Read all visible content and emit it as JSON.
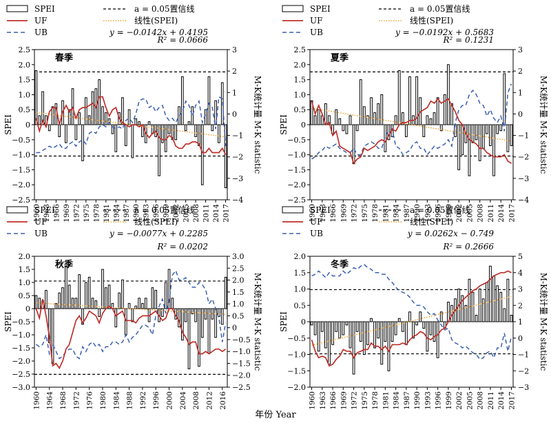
{
  "figure": {
    "x_axis_label": "年份 Year",
    "colors": {
      "bars": "#000000",
      "bar_fill": "#ffffff",
      "uf": "#c0302b",
      "ub": "#3b5fb0",
      "trend": "#f0a030",
      "conf": "#000000"
    }
  },
  "legend": {
    "spei": "SPEI",
    "conf": "a = 0.05置信线",
    "uf": "UF",
    "trend": "线性(SPEI)",
    "ub": "UB"
  },
  "chart_data": [
    {
      "type": "bar",
      "title": "春季",
      "equation": "y = −0.0142x + 0.4195",
      "r2": "R² = 0.0666",
      "ylabel": "SPEI",
      "ylabel_right": "M-K统计量 M-K statistic",
      "ylim": [
        -2.5,
        2.5
      ],
      "yticks": [
        "2.5",
        "2.0",
        "1.5",
        "1.0",
        "0.5",
        "0",
        "−0.5",
        "−1.0",
        "−1.5",
        "−2.0",
        "−2.5"
      ],
      "ylim_right": [
        -4,
        3
      ],
      "yticks_right": [
        "3",
        "2",
        "1",
        "0",
        "−1",
        "−2",
        "−3",
        "−4"
      ],
      "conf_level": 1.96,
      "trend": {
        "slope": -0.0142,
        "intercept": 0.4195
      },
      "x_start": 1960,
      "x_ticks": [
        "1960",
        "1963",
        "1966",
        "1969",
        "1972",
        "1975",
        "1978",
        "1981",
        "1984",
        "1987",
        "1990",
        "1993",
        "1996",
        "1999",
        "2002",
        "2005",
        "2008",
        "2011",
        "2014",
        "2017"
      ],
      "values": [
        1.8,
        0.3,
        1.1,
        0.3,
        -0.2,
        0.6,
        0.7,
        -0.4,
        0.8,
        -0.6,
        0.5,
        1.2,
        -0.5,
        0.4,
        -1.2,
        0.9,
        0.3,
        1.1,
        1.2,
        1.5,
        0.6,
        0.4,
        0.2,
        -0.3,
        -0.9,
        0.4,
        0.9,
        -0.7,
        0.5,
        -1.1,
        0.2,
        0.1,
        -0.4,
        -0.6,
        0.1,
        -0.3,
        -0.4,
        -1.7,
        -0.6,
        -0.9,
        -0.3,
        -0.5,
        -0.5,
        0.6,
        1.6,
        -0.2,
        0.1,
        0.6,
        -0.4,
        -0.7,
        -2.0,
        0.5,
        1.6,
        -0.2,
        0.8,
        -0.6,
        1.4,
        -2.1
      ],
      "uf": [
        -0.2,
        -0.8,
        -0.3,
        -0.6,
        0.1,
        0.3,
        0.3,
        -0.5,
        0.1,
        0.4,
        0.1,
        0.3,
        -0.2,
        0.2,
        0.3,
        0.3,
        0.4,
        0.5,
        0.3,
        0.8,
        0.8,
        0.3,
        -0.1,
        0.2,
        0.3,
        -0.2,
        -0.4,
        -0.5,
        -0.6,
        -0.5,
        -0.5,
        -0.6,
        -0.5,
        -0.9,
        -1.1,
        -0.9,
        -0.8,
        -1.1,
        -1.2,
        -1.2,
        -1.0,
        -1.1,
        -1.5,
        -1.6,
        -1.6,
        -1.4,
        -1.4,
        -1.3,
        -1.3,
        -1.4,
        -1.8,
        -1.8,
        -1.6,
        -1.8,
        -1.8,
        -1.8,
        -1.6,
        -1.9
      ],
      "ub": [
        -1.8,
        -1.8,
        -1.7,
        -1.6,
        -1.5,
        -1.6,
        -1.5,
        -1.4,
        -1.6,
        -1.6,
        -1.4,
        -1.3,
        -1.5,
        -1.3,
        -1.2,
        -1.4,
        -0.9,
        -0.8,
        -0.9,
        -0.6,
        -0.5,
        -0.6,
        -0.4,
        -0.6,
        -0.7,
        -0.6,
        -0.7,
        -0.3,
        -0.2,
        -0.4,
        0.0,
        0.6,
        0.7,
        0.7,
        0.3,
        0.4,
        0.1,
        0.3,
        0.4,
        -0.1,
        -0.3,
        -0.2,
        -0.4,
        -0.1,
        0.1,
        0.6,
        0.4,
        -0.1,
        0.4,
        0.6,
        -0.4,
        0.0,
        0.5,
        0.3,
        -0.7,
        0.8,
        0.7,
        -1.5
      ]
    },
    {
      "type": "bar",
      "title": "夏季",
      "equation": "y = −0.0192x + 0.5683",
      "r2": "R² = 0.1231",
      "ylabel": "SPEI",
      "ylabel_right": "M-K统计量 M-K statistic",
      "ylim": [
        -2.5,
        2.5
      ],
      "yticks": [
        "2.5",
        "2.0",
        "1.5",
        "1.0",
        "0.5",
        "0",
        "−0.5",
        "−1.0",
        "−1.5",
        "−2.0",
        "−2.5"
      ],
      "ylim_right": [
        -4,
        3
      ],
      "yticks_right": [
        "3",
        "2",
        "1",
        "0",
        "−1",
        "−2",
        "−3",
        "−4"
      ],
      "conf_level": 1.96,
      "trend": {
        "slope": -0.0192,
        "intercept": 0.5683
      },
      "x_start": 1960,
      "x_ticks": [
        "1960",
        "1963",
        "1966",
        "1969",
        "1972",
        "1975",
        "1978",
        "1981",
        "1984",
        "1987",
        "1990",
        "1993",
        "1996",
        "1999",
        "2002",
        "2005",
        "2008",
        "2011",
        "2014",
        "2017"
      ],
      "values": [
        0.8,
        0.3,
        0.5,
        0.3,
        0.7,
        0.3,
        -0.3,
        0.5,
        0.2,
        -0.2,
        -0.3,
        0.3,
        -1.3,
        -0.2,
        1.5,
        0.6,
        0.3,
        0.9,
        0.4,
        0.7,
        1.0,
        -0.9,
        -0.5,
        -0.4,
        0.3,
        1.8,
        0.4,
        -0.4,
        1.6,
        0.3,
        1.6,
        0.9,
        -0.4,
        0.3,
        0.2,
        0.4,
        0.9,
        -0.2,
        1.0,
        2.0,
        0.7,
        -0.4,
        -1.5,
        -1.0,
        -0.6,
        -1.7,
        -0.6,
        -0.5,
        -1.2,
        -0.8,
        -0.3,
        -0.7,
        -1.7,
        -0.3,
        -0.2,
        1.7,
        -0.9,
        -0.7
      ],
      "uf": [
        0.6,
        0.0,
        0.4,
        0.0,
        -0.5,
        -0.4,
        -1.0,
        -0.8,
        -1.5,
        -1.6,
        -1.7,
        -1.8,
        -2.3,
        -2.1,
        -2.0,
        -1.6,
        -1.7,
        -1.6,
        -1.5,
        -1.3,
        -1.2,
        -1.3,
        -1.0,
        -0.7,
        -0.8,
        -0.5,
        -0.4,
        -0.4,
        -0.3,
        -0.3,
        -0.2,
        0.1,
        0.2,
        0.3,
        0.6,
        0.5,
        0.7,
        0.5,
        0.6,
        0.7,
        0.4,
        0.1,
        -0.3,
        -0.5,
        -0.9,
        -1.2,
        -1.3,
        -1.4,
        -1.6,
        -1.6,
        -1.8,
        -1.9,
        -2.0,
        -2.0,
        -2.0,
        -1.9,
        -2.2,
        -2.3
      ],
      "ub": [
        -2.1,
        -2.0,
        -1.8,
        -1.7,
        -1.5,
        -1.6,
        -1.5,
        -1.4,
        -1.6,
        -1.7,
        -1.8,
        -1.8,
        -1.6,
        -1.9,
        -1.9,
        -1.5,
        -1.4,
        -1.3,
        -1.4,
        -1.6,
        -1.6,
        -1.0,
        -0.8,
        -0.7,
        -1.5,
        -1.6,
        -1.9,
        -1.8,
        -1.7,
        -1.4,
        -1.3,
        -1.6,
        -1.6,
        -1.9,
        -1.7,
        -1.5,
        -1.6,
        -1.5,
        -1.4,
        -1.2,
        -1.5,
        -0.4,
        0.2,
        0.4,
        0.4,
        0.9,
        1.1,
        0.9,
        0.5,
        0.4,
        -0.1,
        0.2,
        -0.2,
        -0.4,
        -0.1,
        -0.8,
        1.0,
        1.4
      ]
    },
    {
      "type": "bar",
      "title": "秋季",
      "equation": "y = −0.0077x + 0.2285",
      "r2": "R² = 0.0202",
      "ylabel": "SPEI",
      "ylabel_right": "M-K统计量 M-K statistic",
      "ylim": [
        -3.0,
        2.0
      ],
      "yticks": [
        "2.0",
        "1.5",
        "1.0",
        "0.5",
        "0",
        "−0.5",
        "−1.0",
        "−1.5",
        "−2.0",
        "−2.5",
        "−3.0"
      ],
      "ylim_right": [
        -2.5,
        3.0
      ],
      "yticks_right": [
        "3.0",
        "2.5",
        "2.0",
        "1.5",
        "1.0",
        "0.5",
        "0",
        "−0.5",
        "−1.0",
        "−1.5",
        "−2.0",
        "−2.5"
      ],
      "conf_level": 1.96,
      "trend": {
        "slope": -0.0077,
        "intercept": 0.2285
      },
      "x_start": 1960,
      "x_ticks": [
        "1960",
        "1964",
        "1968",
        "1972",
        "1976",
        "1980",
        "1984",
        "1988",
        "1992",
        "1996",
        "2000",
        "2004",
        "2008",
        "2012",
        "2016"
      ],
      "values": [
        0.5,
        0.4,
        0.3,
        0.7,
        -1.3,
        -2.1,
        0.2,
        0.6,
        0.8,
        1.6,
        0.9,
        0.4,
        0.4,
        1.3,
        -0.6,
        1.0,
        1.2,
        0.4,
        0.3,
        -0.3,
        1.5,
        0.8,
        0.9,
        0.2,
        -0.7,
        0.6,
        1.1,
        -1.0,
        0.2,
        -0.5,
        0.1,
        0.4,
        0.2,
        0.4,
        -0.5,
        0.8,
        0.7,
        -0.5,
        -0.3,
        1.0,
        1.5,
        0.4,
        -0.4,
        -0.7,
        -1.2,
        -0.5,
        -2.3,
        -0.2,
        -0.5,
        -2.2,
        -1.1,
        -0.4,
        -1.7,
        -0.4,
        -1.1,
        -0.3,
        -0.6,
        1.2
      ],
      "uf": [
        0.8,
        0.4,
        1.2,
        0.5,
        -0.4,
        -1.6,
        -1.5,
        -1.7,
        -1.4,
        -0.9,
        -0.7,
        -0.2,
        0.3,
        0.5,
        0.2,
        0.4,
        0.7,
        0.6,
        0.5,
        0.2,
        0.6,
        0.8,
        0.9,
        0.8,
        0.5,
        0.6,
        0.7,
        0.3,
        0.3,
        0.3,
        0.2,
        0.4,
        0.5,
        0.5,
        0.5,
        0.6,
        0.7,
        0.5,
        0.3,
        0.4,
        0.8,
        0.8,
        0.5,
        0.3,
        -0.2,
        -0.4,
        -0.7,
        -0.6,
        -0.6,
        -1.1,
        -1.1,
        -1.0,
        -1.1,
        -1.0,
        -0.9,
        -0.9,
        -1.0,
        -0.9
      ],
      "ub": [
        -0.7,
        -0.8,
        -0.7,
        -0.3,
        -1.1,
        -0.7,
        -1.0,
        -1.3,
        -1.2,
        -1.0,
        -0.9,
        -0.9,
        -1.2,
        -1.3,
        -0.8,
        -1.0,
        -0.7,
        -0.6,
        -0.8,
        -0.7,
        -1.0,
        -0.8,
        -0.8,
        -0.6,
        -0.6,
        -0.7,
        -0.6,
        -0.3,
        -0.6,
        -0.4,
        -0.3,
        -0.1,
        0.1,
        0.1,
        0.0,
        -0.3,
        0.5,
        0.9,
        1.2,
        0.6,
        1.1,
        2.2,
        2.4,
        2.0,
        2.0,
        2.1,
        1.9,
        1.7,
        1.7,
        1.9,
        1.8,
        1.6,
        1.0,
        1.2,
        0.8,
        0.4,
        -0.6,
        0.2
      ]
    },
    {
      "type": "bar",
      "title": "冬季",
      "equation": "y = 0.0262x − 0.749",
      "r2": "R² = 0.2666",
      "ylabel": "SPEI",
      "ylabel_right": "M-K统计量 M-K statistic",
      "ylim": [
        -2.0,
        2.0
      ],
      "yticks": [
        "2.0",
        "1.5",
        "1.0",
        "0.5",
        "0",
        "−0.5",
        "−1.0",
        "−1.5",
        "−2.0"
      ],
      "ylim_right": [
        -3,
        5
      ],
      "yticks_right": [
        "5",
        "4",
        "3",
        "2",
        "1",
        "0",
        "−1",
        "−2",
        "−3"
      ],
      "conf_level": 1.96,
      "conf_axis_offset": 1,
      "trend": {
        "slope": 0.0262,
        "intercept": -0.749
      },
      "x_start": 1960,
      "x_ticks": [
        "1960",
        "1963",
        "1966",
        "1969",
        "1972",
        "1975",
        "1978",
        "1981",
        "1984",
        "1987",
        "1990",
        "1993",
        "1996",
        "1999",
        "2002",
        "2005",
        "2008",
        "2011",
        "2014",
        "2017"
      ],
      "values": [
        -0.1,
        -0.4,
        -0.9,
        -0.3,
        -0.8,
        -1.3,
        -0.7,
        -0.3,
        -0.5,
        -0.4,
        -0.1,
        -0.8,
        -1.6,
        -0.3,
        -0.6,
        -1.0,
        -0.7,
        0.1,
        -0.8,
        -0.5,
        -1.3,
        -0.6,
        -1.5,
        -0.6,
        -0.4,
        0.1,
        -0.3,
        -0.7,
        0.3,
        -0.5,
        -0.1,
        0.3,
        -0.2,
        -0.9,
        -0.4,
        -0.6,
        -1.1,
        0.3,
        -0.2,
        0.6,
        0.5,
        0.7,
        1.0,
        0.8,
        0.5,
        1.3,
        0.9,
        0.2,
        1.0,
        0.7,
        1.2,
        1.7,
        1.4,
        1.1,
        0.9,
        0.4,
        1.3,
        0.2
      ],
      "uf": [
        -0.1,
        -0.8,
        -1.2,
        -1.1,
        -1.2,
        -1.7,
        -1.6,
        -1.3,
        -1.1,
        -0.7,
        -0.8,
        -0.8,
        -1.2,
        -0.9,
        -0.8,
        -0.7,
        -0.7,
        -0.3,
        -0.5,
        -0.5,
        -0.7,
        -0.5,
        -0.8,
        -0.4,
        -0.4,
        -0.4,
        -0.3,
        -0.4,
        -0.1,
        0.1,
        0.2,
        0.4,
        0.3,
        0.0,
        -0.1,
        0.1,
        0.2,
        0.5,
        0.6,
        1.0,
        1.4,
        1.7,
        2.0,
        2.3,
        2.5,
        2.7,
        2.9,
        3.0,
        3.2,
        3.3,
        3.4,
        3.6,
        3.8,
        3.9,
        4.0,
        4.0,
        4.1,
        4.0
      ],
      "ub": [
        3.8,
        3.9,
        4.1,
        3.9,
        3.7,
        4.0,
        3.8,
        3.8,
        3.8,
        4.1,
        3.9,
        4.1,
        4.3,
        4.2,
        4.4,
        4.5,
        4.3,
        4.2,
        4.0,
        4.0,
        3.9,
        3.9,
        3.6,
        3.4,
        3.1,
        2.9,
        2.8,
        2.7,
        2.5,
        2.2,
        2.0,
        2.0,
        1.9,
        1.6,
        1.4,
        1.5,
        1.1,
        0.8,
        0.5,
        0.6,
        -0.1,
        -0.3,
        -0.4,
        -0.6,
        -0.5,
        -0.7,
        -0.9,
        -1.0,
        -1.3,
        -1.2,
        -0.9,
        -0.8,
        -1.2,
        -0.6,
        -0.6,
        0.3,
        -0.8,
        0.1
      ]
    }
  ]
}
